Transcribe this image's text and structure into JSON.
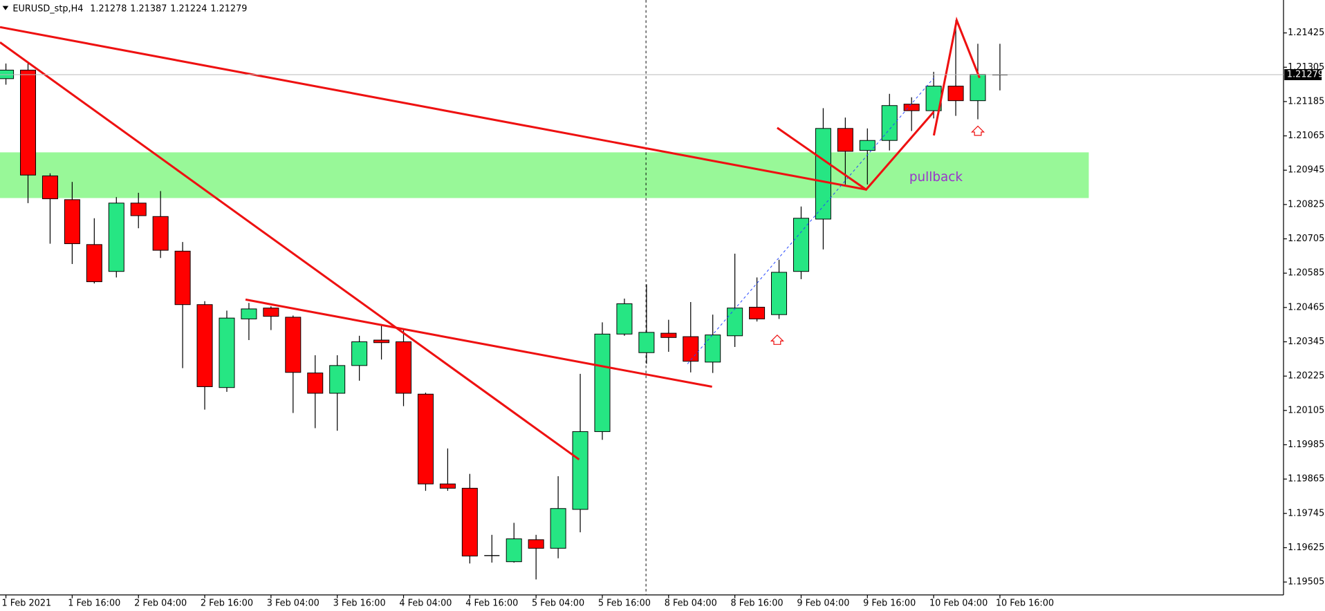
{
  "chart_data": {
    "type": "candlestick",
    "symbol": "EURUSD_stp,H4",
    "annotation": "pullback",
    "up_color": "#26e683",
    "down_color": "#ff0000",
    "doji_color": "#000000",
    "categories": [
      "1 Feb 2021",
      null,
      null,
      "1 Feb 16:00",
      null,
      null,
      "2 Feb 04:00",
      null,
      null,
      "2 Feb 16:00",
      null,
      null,
      "3 Feb 04:00",
      null,
      null,
      "3 Feb 16:00",
      null,
      null,
      "4 Feb 04:00",
      null,
      null,
      "4 Feb 16:00",
      null,
      null,
      "5 Feb 04:00",
      null,
      null,
      "5 Feb 16:00",
      null,
      null,
      "8 Feb 04:00",
      null,
      null,
      "8 Feb 16:00",
      null,
      null,
      "9 Feb 04:00",
      null,
      null,
      "9 Feb 16:00",
      null,
      null,
      "10 Feb 04:00",
      null,
      null,
      "10 Feb 16:00"
    ],
    "open": [
      1.21265,
      1.21295,
      1.20925,
      1.20842,
      1.20685,
      1.20591,
      1.2083,
      1.20783,
      1.20662,
      1.20475,
      1.20185,
      1.20425,
      1.20463,
      1.20431,
      1.20236,
      1.20165,
      1.20262,
      1.20351,
      1.20345,
      1.20162,
      1.19848,
      1.19833,
      1.19596,
      1.19576,
      1.19653,
      1.19623,
      1.19759,
      1.20031,
      1.20372,
      1.20307,
      1.20375,
      1.20363,
      1.20274,
      1.20366,
      1.20466,
      1.2044,
      1.20591,
      1.20774,
      1.21091,
      1.21014,
      1.21049,
      1.21176,
      1.21153,
      1.21239,
      1.21188,
      1.21278
    ],
    "high": [
      1.21318,
      1.21318,
      1.20934,
      1.20904,
      1.20777,
      1.20851,
      1.20866,
      1.20872,
      1.20694,
      1.20487,
      1.20454,
      1.20481,
      1.20469,
      1.20437,
      1.20298,
      1.20298,
      1.20366,
      1.20407,
      1.20392,
      1.20167,
      1.19972,
      1.19883,
      1.1967,
      1.19712,
      1.1967,
      1.19875,
      1.20233,
      1.20413,
      1.20496,
      1.20546,
      1.20422,
      1.20484,
      1.2044,
      1.20653,
      1.2057,
      1.20632,
      1.20818,
      1.21162,
      1.21129,
      1.21091,
      1.21212,
      1.212,
      1.21289,
      1.21469,
      1.21387,
      1.21387
    ],
    "low": [
      1.21244,
      1.2083,
      1.20688,
      1.20617,
      1.20549,
      1.2057,
      1.20742,
      1.20638,
      1.20253,
      1.20108,
      1.2017,
      1.20351,
      1.20386,
      1.20096,
      1.20043,
      1.20034,
      1.20209,
      1.20283,
      1.2012,
      1.19824,
      1.19824,
      1.1957,
      1.19573,
      1.19573,
      1.19514,
      1.19588,
      1.19679,
      1.20002,
      1.20366,
      1.20268,
      1.2031,
      1.20238,
      1.20236,
      1.20327,
      1.20416,
      1.20425,
      1.20564,
      1.20668,
      1.20895,
      1.20895,
      1.21014,
      1.21082,
      1.21126,
      1.21135,
      1.21123,
      1.21224
    ],
    "close": [
      1.21295,
      1.20928,
      1.20845,
      1.20688,
      1.20555,
      1.2083,
      1.20786,
      1.20665,
      1.20475,
      1.20188,
      1.20428,
      1.2046,
      1.20434,
      1.20238,
      1.20165,
      1.20262,
      1.20345,
      1.20342,
      1.20165,
      1.19848,
      1.19833,
      1.19596,
      1.19599,
      1.19656,
      1.19623,
      1.19762,
      1.20031,
      1.20372,
      1.20478,
      1.20378,
      1.2036,
      1.20277,
      1.20369,
      1.20463,
      1.20425,
      1.20588,
      1.20777,
      1.21091,
      1.21011,
      1.21049,
      1.21171,
      1.21153,
      1.21239,
      1.21188,
      1.2128,
      1.21279
    ],
    "ylim": [
      1.1946,
      1.2154
    ],
    "yticks": [
      1.19505,
      1.19625,
      1.19745,
      1.19865,
      1.19985,
      1.20105,
      1.20225,
      1.20345,
      1.20465,
      1.20585,
      1.20705,
      1.20825,
      1.20945,
      1.21065,
      1.21185,
      1.21305,
      1.21425
    ]
  }
}
